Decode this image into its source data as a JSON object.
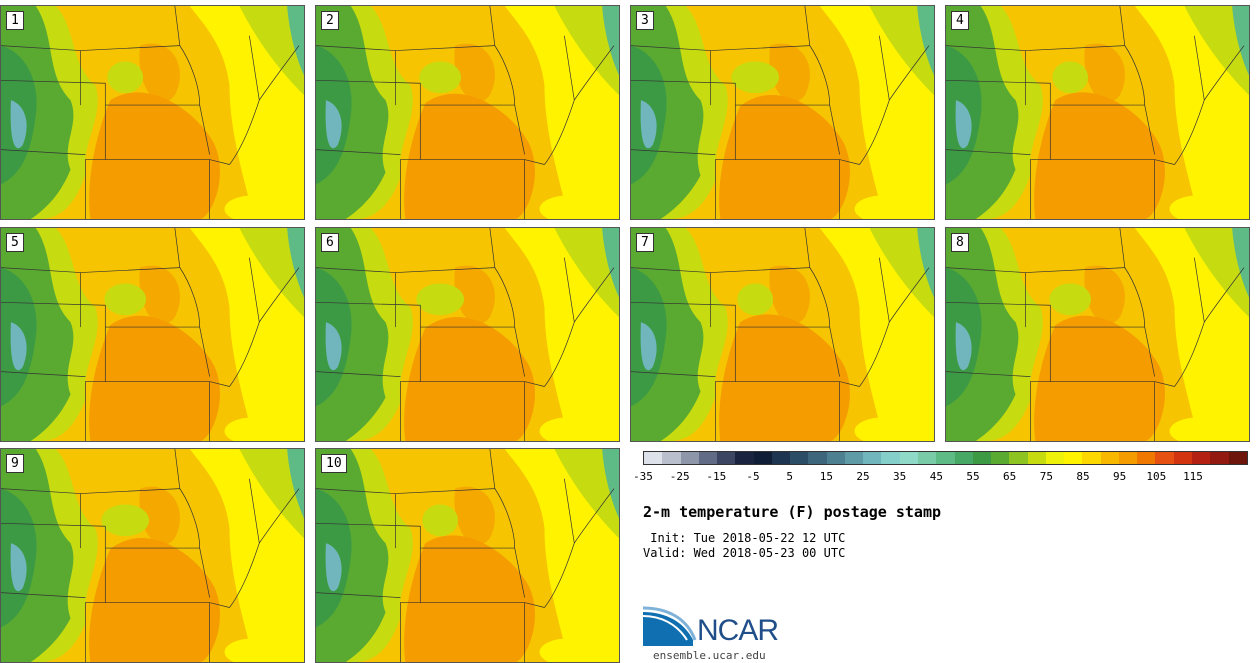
{
  "panels": [
    {
      "label": "1"
    },
    {
      "label": "2"
    },
    {
      "label": "3"
    },
    {
      "label": "4"
    },
    {
      "label": "5"
    },
    {
      "label": "6"
    },
    {
      "label": "7"
    },
    {
      "label": "8"
    },
    {
      "label": "9"
    },
    {
      "label": "10"
    }
  ],
  "colorbar": {
    "colors": [
      "#dde2ea",
      "#b9bfcc",
      "#8e96aa",
      "#616b86",
      "#3c4662",
      "#1a2440",
      "#0f1e36",
      "#1d3550",
      "#2c4d66",
      "#3d667d",
      "#4d8090",
      "#5f9ba6",
      "#70b6bc",
      "#84cfca",
      "#8fd9c9",
      "#79cba8",
      "#5fbb86",
      "#47a865",
      "#3c9a44",
      "#5aaa32",
      "#8ec422",
      "#c6dc10",
      "#eef20a",
      "#fff300",
      "#fcd700",
      "#f8b800",
      "#f59c00",
      "#f07800",
      "#e65010",
      "#d23410",
      "#b42012",
      "#921a10",
      "#6e160c"
    ],
    "tick_labels": [
      "-35",
      "-25",
      "-15",
      "-5",
      "5",
      "15",
      "25",
      "35",
      "45",
      "55",
      "65",
      "75",
      "85",
      "95",
      "105",
      "115"
    ]
  },
  "title": "2-m temperature (F) postage stamp",
  "init_line": " Init: Tue 2018-05-22 12 UTC",
  "valid_line": "Valid: Wed 2018-05-23 00 UTC",
  "logo_name": "NCAR",
  "logo_url": "ensemble.ucar.edu",
  "map_colors": {
    "base": "#f6c400",
    "hot": "#f59c00",
    "warm_yellow": "#fff300",
    "lime": "#c6dc10",
    "green": "#5aaa32",
    "dark_green": "#3c9a44",
    "teal": "#70b6bc",
    "lake": "#5fbb86"
  }
}
